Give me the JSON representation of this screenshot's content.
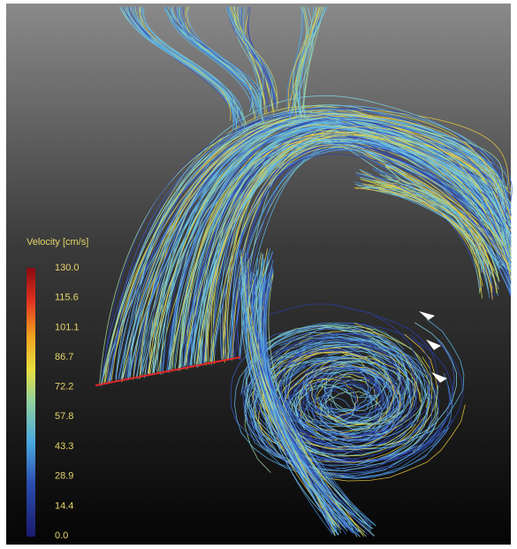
{
  "colorbar": {
    "title": "Velocity [cm/s]",
    "range": [
      0,
      130
    ],
    "ticks": [
      {
        "value": 130,
        "label": "130.0"
      },
      {
        "value": 115.6,
        "label": "115.6"
      },
      {
        "value": 101.1,
        "label": "101.1"
      },
      {
        "value": 86.7,
        "label": "86.7"
      },
      {
        "value": 72.2,
        "label": "72.2"
      },
      {
        "value": 57.8,
        "label": "57.8"
      },
      {
        "value": 43.3,
        "label": "43.3"
      },
      {
        "value": 28.9,
        "label": "28.9"
      },
      {
        "value": 14.4,
        "label": "14.4"
      },
      {
        "value": 0,
        "label": "0.0"
      }
    ]
  }
}
